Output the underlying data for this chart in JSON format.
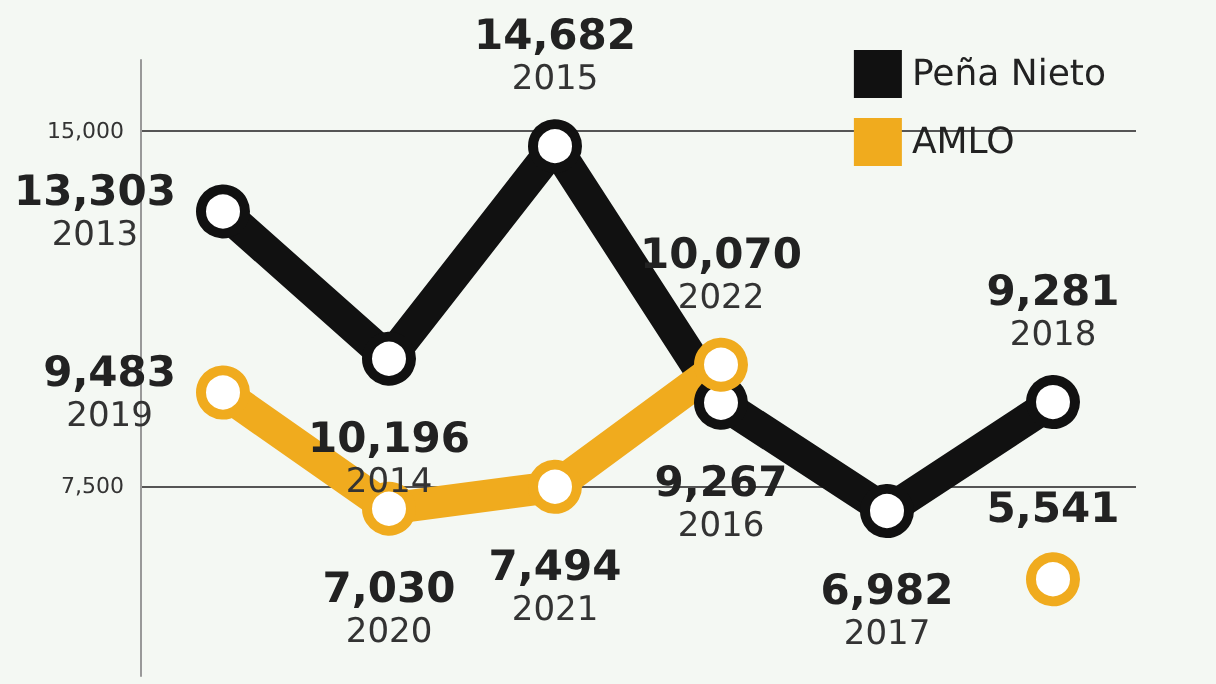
{
  "chart_data": {
    "type": "line",
    "categories": [
      null,
      null,
      null,
      null,
      null,
      null
    ],
    "series": [
      {
        "name": "Peña Nieto",
        "color": "#111111",
        "values": [
          13303,
          10196,
          14682,
          9267,
          6982,
          9281
        ],
        "value_labels": [
          "13,303\n2013",
          "10,196\n2014",
          "14,682\n2015",
          "9,267\n2016",
          "6,982\n2017",
          "9,281\n2018"
        ]
      },
      {
        "name": "AMLO",
        "color": "#f0ab1e",
        "values": [
          9483,
          7030,
          7494,
          10070,
          null,
          5541
        ],
        "value_labels": [
          "9,483\n2019",
          "7,030\n2020",
          "7,494\n2021",
          "10,070\n2022",
          null,
          "5,541"
        ]
      }
    ],
    "ylim": [
      3500,
      16500
    ],
    "yticks": [
      {
        "value": 7500,
        "label": "7,500"
      },
      {
        "value": 15000,
        "label": "15,000"
      }
    ],
    "grid": "y",
    "legend": "top right",
    "marker": "circle",
    "line_style": "solid",
    "tick_labels": "y"
  }
}
